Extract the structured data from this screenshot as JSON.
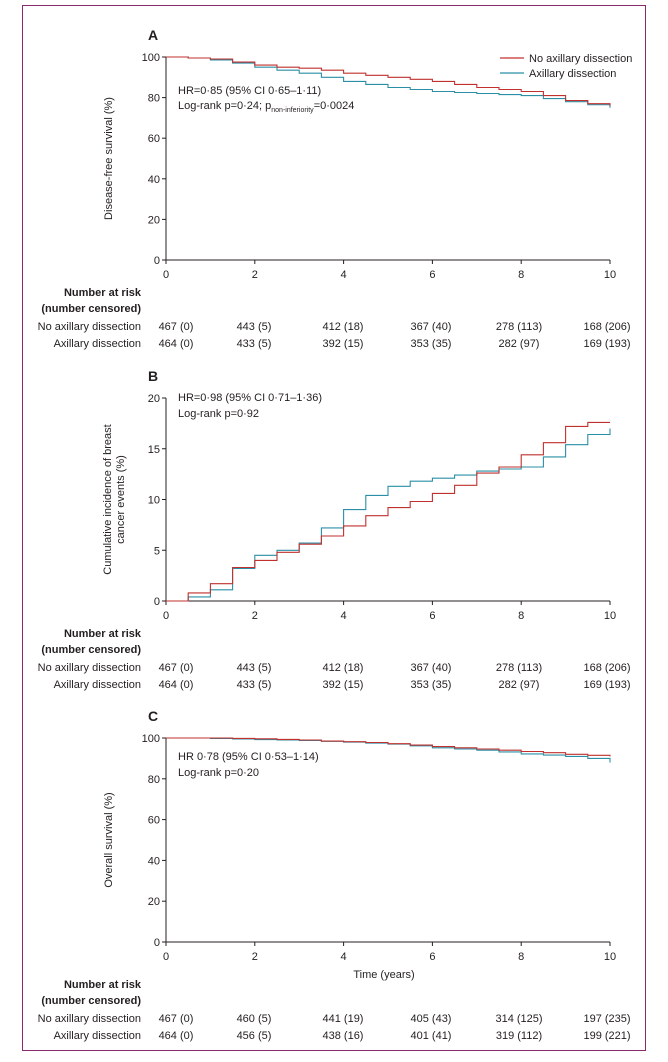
{
  "colors": {
    "no_axillary": "#c0312e",
    "axillary": "#2a8fa6",
    "frame": "#8a2a6a"
  },
  "legend": {
    "no_axillary": "No axillary dissection",
    "axillary": "Axillary dissection"
  },
  "chart_data": [
    {
      "panel": "A",
      "type": "line",
      "ylabel": "Disease-free survival (%)",
      "xlabel": "",
      "xlim": [
        0,
        10
      ],
      "ylim": [
        0,
        100
      ],
      "xticks": [
        "0",
        "2",
        "4",
        "6",
        "8",
        "10"
      ],
      "yticks": [
        "0",
        "20",
        "40",
        "60",
        "80",
        "100"
      ],
      "stats": [
        "HR=0·85 (95% CI 0·65–1·11)",
        "Log-rank p=0·24; p",
        "non-inferiority",
        "=0·0024"
      ],
      "series": [
        {
          "name": "No axillary dissection",
          "x": [
            0,
            0.5,
            1,
            1.5,
            2,
            2.5,
            3,
            3.5,
            4,
            4.5,
            5,
            5.5,
            6,
            6.5,
            7,
            7.5,
            8,
            8.5,
            9,
            9.5,
            10
          ],
          "y": [
            100,
            99.5,
            99,
            97.5,
            96,
            95,
            94.5,
            93.5,
            92,
            91,
            90,
            89,
            88,
            86.5,
            85,
            84,
            83,
            81,
            78.5,
            77,
            76
          ]
        },
        {
          "name": "Axillary dissection",
          "x": [
            0,
            0.5,
            1,
            1.5,
            2,
            2.5,
            3,
            3.5,
            4,
            4.5,
            5,
            5.5,
            6,
            6.5,
            7,
            7.5,
            8,
            8.5,
            9,
            9.5,
            10
          ],
          "y": [
            100,
            99.5,
            98.5,
            97,
            95,
            93.5,
            92,
            90,
            88,
            86.5,
            85,
            84,
            83,
            82.5,
            82,
            81.5,
            81,
            79.5,
            78,
            76.5,
            75
          ]
        }
      ],
      "risk": {
        "title": "Number at risk",
        "subtitle": "(number censored)",
        "rows": [
          {
            "label": "No axillary dissection",
            "values": [
              "467 (0)",
              "443 (5)",
              "412 (18)",
              "367 (40)",
              "278 (113)",
              "168 (206)"
            ]
          },
          {
            "label": "Axillary dissection",
            "values": [
              "464 (0)",
              "433 (5)",
              "392 (15)",
              "353 (35)",
              "282 (97)",
              "169 (193)"
            ]
          }
        ]
      }
    },
    {
      "panel": "B",
      "type": "line",
      "ylabel": "Cumulative incidence of breast cancer events (%)",
      "ylabel_lines": [
        "Cumulative incidence of breast",
        "cancer events (%)"
      ],
      "xlabel": "",
      "xlim": [
        0,
        10
      ],
      "ylim": [
        0,
        20
      ],
      "xticks": [
        "0",
        "2",
        "4",
        "6",
        "8",
        "10"
      ],
      "yticks": [
        "0",
        "5",
        "10",
        "15",
        "20"
      ],
      "stats": [
        "HR=0·98 (95% CI 0·71–1·36)",
        "Log-rank p=0·92"
      ],
      "series": [
        {
          "name": "No axillary dissection",
          "x": [
            0,
            0.5,
            1,
            1.5,
            2,
            2.5,
            3,
            3.5,
            4,
            4.5,
            5,
            5.5,
            6,
            6.5,
            7,
            7.5,
            8,
            8.5,
            9,
            9.5,
            10
          ],
          "y": [
            0,
            0.8,
            1.7,
            3.3,
            4,
            4.8,
            5.6,
            6.4,
            7.4,
            8.4,
            9.2,
            9.8,
            10.6,
            11.4,
            12.6,
            13.2,
            14.4,
            15.6,
            17.2,
            17.6,
            17.6
          ]
        },
        {
          "name": "Axillary dissection",
          "x": [
            0,
            0.5,
            1,
            1.5,
            2,
            2.5,
            3,
            3.5,
            4,
            4.5,
            5,
            5.5,
            6,
            6.5,
            7,
            7.5,
            8,
            8.5,
            9,
            9.5,
            10
          ],
          "y": [
            0,
            0.4,
            1.1,
            3.2,
            4.5,
            5,
            5.7,
            7.2,
            9,
            10.4,
            11.3,
            11.8,
            12.1,
            12.4,
            12.8,
            13,
            13.2,
            14.2,
            15.4,
            16.4,
            17
          ]
        }
      ],
      "risk": {
        "title": "Number at risk",
        "subtitle": "(number censored)",
        "rows": [
          {
            "label": "No axillary dissection",
            "values": [
              "467 (0)",
              "443 (5)",
              "412 (18)",
              "367 (40)",
              "278 (113)",
              "168 (206)"
            ]
          },
          {
            "label": "Axillary dissection",
            "values": [
              "464 (0)",
              "433 (5)",
              "392 (15)",
              "353 (35)",
              "282 (97)",
              "169 (193)"
            ]
          }
        ]
      }
    },
    {
      "panel": "C",
      "type": "line",
      "ylabel": "Overall survival (%)",
      "xlabel": "Time (years)",
      "xlim": [
        0,
        10
      ],
      "ylim": [
        0,
        100
      ],
      "xticks": [
        "0",
        "2",
        "4",
        "6",
        "8",
        "10"
      ],
      "yticks": [
        "0",
        "20",
        "40",
        "60",
        "80",
        "100"
      ],
      "stats": [
        "HR 0·78 (95% CI 0·53–1·14)",
        "Log-rank p=0·20"
      ],
      "series": [
        {
          "name": "No axillary dissection",
          "x": [
            0,
            0.5,
            1,
            1.5,
            2,
            2.5,
            3,
            3.5,
            4,
            4.5,
            5,
            5.5,
            6,
            6.5,
            7,
            7.5,
            8,
            8.5,
            9,
            9.5,
            10
          ],
          "y": [
            100,
            100,
            100,
            99.8,
            99.6,
            99.3,
            99,
            98.5,
            98.2,
            97.8,
            97.2,
            96.5,
            95.8,
            95.2,
            94.6,
            94,
            93.4,
            92.8,
            92,
            91.5,
            91
          ]
        },
        {
          "name": "Axillary dissection",
          "x": [
            0,
            0.5,
            1,
            1.5,
            2,
            2.5,
            3,
            3.5,
            4,
            4.5,
            5,
            5.5,
            6,
            6.5,
            7,
            7.5,
            8,
            8.5,
            9,
            9.5,
            10
          ],
          "y": [
            100,
            100,
            99.8,
            99.5,
            99.2,
            99,
            98.8,
            98.4,
            98,
            97.5,
            97,
            96.2,
            95.2,
            94.6,
            94,
            93.2,
            92.2,
            91.6,
            91,
            90,
            88
          ]
        }
      ],
      "risk": {
        "title": "Number at risk",
        "subtitle": "(number censored)",
        "rows": [
          {
            "label": "No axillary dissection",
            "values": [
              "467 (0)",
              "460 (5)",
              "441 (19)",
              "405 (43)",
              "314 (125)",
              "197 (235)"
            ]
          },
          {
            "label": "Axillary dissection",
            "values": [
              "464 (0)",
              "456 (5)",
              "438 (16)",
              "401 (41)",
              "319 (112)",
              "199 (221)"
            ]
          }
        ]
      }
    }
  ]
}
